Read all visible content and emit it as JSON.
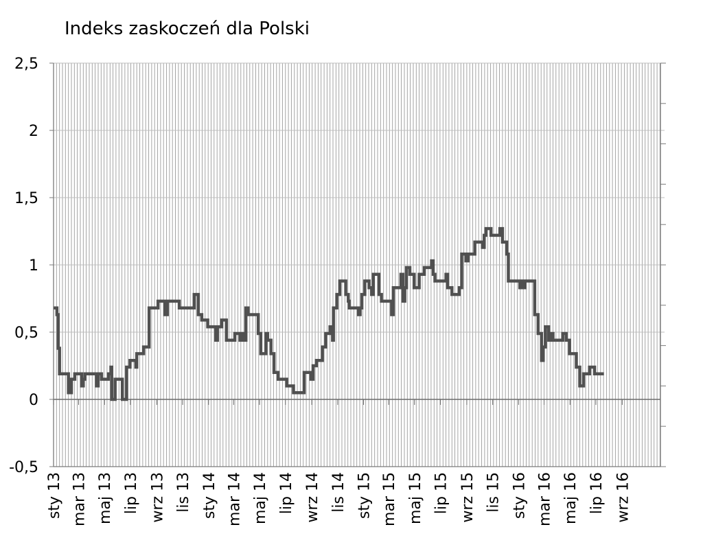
{
  "chart_data": {
    "type": "line",
    "title": "Indeks zaskoczeń dla Polski",
    "xlabel": "",
    "ylabel": "",
    "ylim": [
      -0.5,
      2.5
    ],
    "y_ticks": [
      {
        "value": 2.5,
        "label": "2,5"
      },
      {
        "value": 2,
        "label": "2"
      },
      {
        "value": 1.5,
        "label": "1,5"
      },
      {
        "value": 1,
        "label": "1"
      },
      {
        "value": 0.5,
        "label": "0,5"
      },
      {
        "value": 0,
        "label": "0"
      },
      {
        "value": -0.5,
        "label": "-0,5"
      }
    ],
    "x_range": [
      "2013-01-01",
      "2016-11-30"
    ],
    "x_ticks": [
      {
        "date": "2013-01-01",
        "label": "sty 13"
      },
      {
        "date": "2013-03-01",
        "label": "mar 13"
      },
      {
        "date": "2013-05-01",
        "label": "maj 13"
      },
      {
        "date": "2013-07-01",
        "label": "lip 13"
      },
      {
        "date": "2013-09-01",
        "label": "wrz 13"
      },
      {
        "date": "2013-11-01",
        "label": "lis 13"
      },
      {
        "date": "2014-01-01",
        "label": "sty 14"
      },
      {
        "date": "2014-03-01",
        "label": "mar 14"
      },
      {
        "date": "2014-05-01",
        "label": "maj 14"
      },
      {
        "date": "2014-07-01",
        "label": "lip 14"
      },
      {
        "date": "2014-09-01",
        "label": "wrz 14"
      },
      {
        "date": "2014-11-01",
        "label": "lis 14"
      },
      {
        "date": "2015-01-01",
        "label": "sty 15"
      },
      {
        "date": "2015-03-01",
        "label": "mar 15"
      },
      {
        "date": "2015-05-01",
        "label": "maj 15"
      },
      {
        "date": "2015-07-01",
        "label": "lip 15"
      },
      {
        "date": "2015-09-01",
        "label": "wrz 15"
      },
      {
        "date": "2015-11-01",
        "label": "lis 15"
      },
      {
        "date": "2016-01-01",
        "label": "sty 16"
      },
      {
        "date": "2016-03-01",
        "label": "mar 16"
      },
      {
        "date": "2016-05-01",
        "label": "maj 16"
      },
      {
        "date": "2016-07-01",
        "label": "lip 16"
      },
      {
        "date": "2016-09-01",
        "label": "wrz 16"
      }
    ],
    "grid": "vertical-dense",
    "line_color": "#505050",
    "series": [
      {
        "name": "",
        "points": [
          [
            "2013-01-01",
            0.68
          ],
          [
            "2013-01-09",
            0.63
          ],
          [
            "2013-01-12",
            0.38
          ],
          [
            "2013-01-15",
            0.19
          ],
          [
            "2013-02-01",
            0.19
          ],
          [
            "2013-02-05",
            0.05
          ],
          [
            "2013-02-12",
            0.15
          ],
          [
            "2013-02-20",
            0.19
          ],
          [
            "2013-03-08",
            0.1
          ],
          [
            "2013-03-12",
            0.15
          ],
          [
            "2013-03-16",
            0.19
          ],
          [
            "2013-04-12",
            0.1
          ],
          [
            "2013-04-16",
            0.19
          ],
          [
            "2013-04-24",
            0.15
          ],
          [
            "2013-05-10",
            0.19
          ],
          [
            "2013-05-16",
            0.24
          ],
          [
            "2013-05-18",
            0.0
          ],
          [
            "2013-05-26",
            0.15
          ],
          [
            "2013-06-10",
            0.15
          ],
          [
            "2013-06-12",
            0.0
          ],
          [
            "2013-06-22",
            0.24
          ],
          [
            "2013-06-30",
            0.29
          ],
          [
            "2013-07-14",
            0.24
          ],
          [
            "2013-07-16",
            0.34
          ],
          [
            "2013-08-01",
            0.39
          ],
          [
            "2013-08-14",
            0.68
          ],
          [
            "2013-09-04",
            0.73
          ],
          [
            "2013-09-20",
            0.63
          ],
          [
            "2013-09-26",
            0.73
          ],
          [
            "2013-10-24",
            0.68
          ],
          [
            "2013-11-12",
            0.68
          ],
          [
            "2013-11-28",
            0.78
          ],
          [
            "2013-12-08",
            0.63
          ],
          [
            "2013-12-16",
            0.59
          ],
          [
            "2013-12-30",
            0.54
          ],
          [
            "2014-01-18",
            0.44
          ],
          [
            "2014-01-22",
            0.54
          ],
          [
            "2014-02-01",
            0.59
          ],
          [
            "2014-02-12",
            0.44
          ],
          [
            "2014-03-04",
            0.49
          ],
          [
            "2014-03-16",
            0.44
          ],
          [
            "2014-03-20",
            0.49
          ],
          [
            "2014-03-26",
            0.44
          ],
          [
            "2014-03-30",
            0.68
          ],
          [
            "2014-04-04",
            0.63
          ],
          [
            "2014-04-28",
            0.49
          ],
          [
            "2014-05-04",
            0.34
          ],
          [
            "2014-05-16",
            0.49
          ],
          [
            "2014-05-20",
            0.44
          ],
          [
            "2014-05-28",
            0.34
          ],
          [
            "2014-06-04",
            0.2
          ],
          [
            "2014-06-14",
            0.15
          ],
          [
            "2014-07-04",
            0.1
          ],
          [
            "2014-07-20",
            0.05
          ],
          [
            "2014-08-14",
            0.2
          ],
          [
            "2014-08-30",
            0.15
          ],
          [
            "2014-09-04",
            0.25
          ],
          [
            "2014-09-12",
            0.29
          ],
          [
            "2014-09-26",
            0.39
          ],
          [
            "2014-10-04",
            0.49
          ],
          [
            "2014-10-14",
            0.54
          ],
          [
            "2014-10-20",
            0.44
          ],
          [
            "2014-10-22",
            0.68
          ],
          [
            "2014-10-30",
            0.78
          ],
          [
            "2014-11-06",
            0.88
          ],
          [
            "2014-11-20",
            0.78
          ],
          [
            "2014-11-26",
            0.73
          ],
          [
            "2014-11-28",
            0.68
          ],
          [
            "2014-12-20",
            0.63
          ],
          [
            "2014-12-24",
            0.68
          ],
          [
            "2014-12-28",
            0.78
          ],
          [
            "2015-01-04",
            0.88
          ],
          [
            "2015-01-14",
            0.83
          ],
          [
            "2015-01-20",
            0.78
          ],
          [
            "2015-01-24",
            0.93
          ],
          [
            "2015-02-06",
            0.78
          ],
          [
            "2015-02-12",
            0.73
          ],
          [
            "2015-03-08",
            0.63
          ],
          [
            "2015-03-12",
            0.83
          ],
          [
            "2015-03-30",
            0.93
          ],
          [
            "2015-04-04",
            0.73
          ],
          [
            "2015-04-08",
            0.83
          ],
          [
            "2015-04-12",
            0.98
          ],
          [
            "2015-04-20",
            0.93
          ],
          [
            "2015-04-30",
            0.83
          ],
          [
            "2015-05-12",
            0.93
          ],
          [
            "2015-05-24",
            0.98
          ],
          [
            "2015-06-10",
            1.03
          ],
          [
            "2015-06-14",
            0.93
          ],
          [
            "2015-06-18",
            0.88
          ],
          [
            "2015-07-14",
            0.93
          ],
          [
            "2015-07-18",
            0.83
          ],
          [
            "2015-07-28",
            0.78
          ],
          [
            "2015-08-14",
            0.83
          ],
          [
            "2015-08-20",
            1.08
          ],
          [
            "2015-08-30",
            1.03
          ],
          [
            "2015-09-04",
            1.08
          ],
          [
            "2015-09-20",
            1.17
          ],
          [
            "2015-10-08",
            1.13
          ],
          [
            "2015-10-12",
            1.22
          ],
          [
            "2015-10-16",
            1.27
          ],
          [
            "2015-10-28",
            1.22
          ],
          [
            "2015-11-18",
            1.27
          ],
          [
            "2015-11-24",
            1.17
          ],
          [
            "2015-12-04",
            1.08
          ],
          [
            "2015-12-08",
            0.88
          ],
          [
            "2016-01-04",
            0.83
          ],
          [
            "2016-01-08",
            0.88
          ],
          [
            "2016-01-12",
            0.83
          ],
          [
            "2016-01-16",
            0.88
          ],
          [
            "2016-02-08",
            0.63
          ],
          [
            "2016-02-16",
            0.49
          ],
          [
            "2016-02-24",
            0.29
          ],
          [
            "2016-02-28",
            0.39
          ],
          [
            "2016-03-04",
            0.54
          ],
          [
            "2016-03-12",
            0.44
          ],
          [
            "2016-03-16",
            0.49
          ],
          [
            "2016-03-22",
            0.44
          ],
          [
            "2016-04-14",
            0.49
          ],
          [
            "2016-04-22",
            0.44
          ],
          [
            "2016-04-30",
            0.34
          ],
          [
            "2016-05-16",
            0.24
          ],
          [
            "2016-05-24",
            0.1
          ],
          [
            "2016-06-02",
            0.19
          ],
          [
            "2016-06-16",
            0.24
          ],
          [
            "2016-06-28",
            0.19
          ],
          [
            "2016-07-20",
            0.19
          ]
        ]
      }
    ]
  }
}
